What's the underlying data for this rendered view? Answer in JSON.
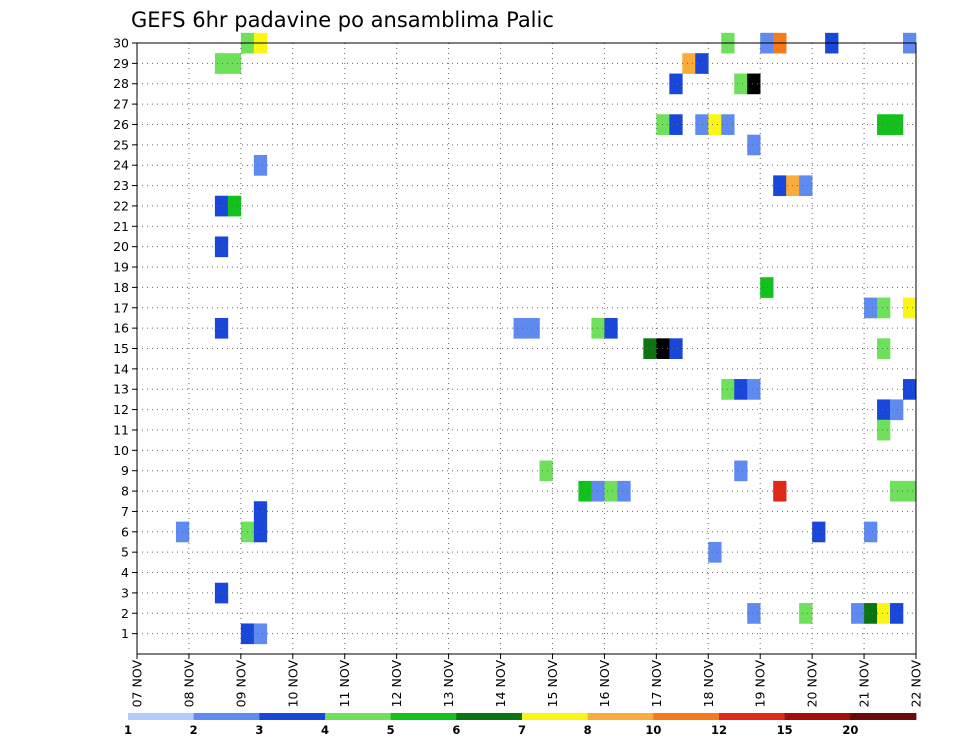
{
  "chart_data": {
    "type": "heatmap",
    "title": "GEFS 6hr padavine po ansamblima Palic",
    "xlabel": "",
    "ylabel": "",
    "x_ticks": [
      "07 NOV",
      "08 NOV",
      "09 NOV",
      "10 NOV",
      "11 NOV",
      "12 NOV",
      "13 NOV",
      "14 NOV",
      "15 NOV",
      "16 NOV",
      "17 NOV",
      "18 NOV",
      "19 NOV",
      "20 NOV",
      "21 NOV",
      "22 NOV"
    ],
    "y_ticks": [
      "1",
      "2",
      "3",
      "4",
      "5",
      "6",
      "7",
      "8",
      "9",
      "10",
      "11",
      "12",
      "13",
      "14",
      "15",
      "16",
      "17",
      "18",
      "19",
      "20",
      "21",
      "22",
      "23",
      "24",
      "25",
      "26",
      "27",
      "28",
      "29",
      "30"
    ],
    "xlim_days": [
      0,
      15
    ],
    "ylim_members": [
      0,
      30
    ],
    "grid": true,
    "step_hours": 6,
    "colorbar": {
      "levels": [
        "1",
        "2",
        "3",
        "4",
        "5",
        "6",
        "7",
        "8",
        "10",
        "12",
        "15",
        "20"
      ],
      "colors": [
        "#b5c9fa",
        "#5f8af0",
        "#1847da",
        "#6ee05b",
        "#13c11c",
        "#0b7512",
        "#faf513",
        "#faac3b",
        "#f57a1b",
        "#df2a1a",
        "#a50c0c",
        "#6b0a0a"
      ]
    },
    "cells": [
      {
        "member": 30,
        "time": "09 NOV 00",
        "bin": 3
      },
      {
        "member": 30,
        "time": "09 NOV 06",
        "bin": 6
      },
      {
        "member": 30,
        "time": "18 NOV 06",
        "bin": 3
      },
      {
        "member": 30,
        "time": "19 NOV 00",
        "bin": 1
      },
      {
        "member": 30,
        "time": "19 NOV 06",
        "bin": 8
      },
      {
        "member": 30,
        "time": "20 NOV 06",
        "bin": 2
      },
      {
        "member": 30,
        "time": "21 NOV 18",
        "bin": 1
      },
      {
        "member": 29,
        "time": "08 NOV 12",
        "bin": 3
      },
      {
        "member": 29,
        "time": "08 NOV 18",
        "bin": 3
      },
      {
        "member": 29,
        "time": "17 NOV 12",
        "bin": 7
      },
      {
        "member": 29,
        "time": "17 NOV 18",
        "bin": 2
      },
      {
        "member": 28,
        "time": "17 NOV 06",
        "bin": 2
      },
      {
        "member": 28,
        "time": "18 NOV 12",
        "bin": 3
      },
      {
        "member": 28,
        "time": "18 NOV 18",
        "bin": 12
      },
      {
        "member": 26,
        "time": "17 NOV 00",
        "bin": 3
      },
      {
        "member": 26,
        "time": "17 NOV 06",
        "bin": 2
      },
      {
        "member": 26,
        "time": "17 NOV 18",
        "bin": 1
      },
      {
        "member": 26,
        "time": "18 NOV 00",
        "bin": 6
      },
      {
        "member": 26,
        "time": "18 NOV 06",
        "bin": 1
      },
      {
        "member": 26,
        "time": "21 NOV 06",
        "bin": 4
      },
      {
        "member": 26,
        "time": "21 NOV 12",
        "bin": 4
      },
      {
        "member": 25,
        "time": "18 NOV 18",
        "bin": 1
      },
      {
        "member": 24,
        "time": "09 NOV 06",
        "bin": 1
      },
      {
        "member": 23,
        "time": "19 NOV 06",
        "bin": 2
      },
      {
        "member": 23,
        "time": "19 NOV 12",
        "bin": 7
      },
      {
        "member": 23,
        "time": "19 NOV 18",
        "bin": 1
      },
      {
        "member": 22,
        "time": "08 NOV 12",
        "bin": 2
      },
      {
        "member": 22,
        "time": "08 NOV 18",
        "bin": 4
      },
      {
        "member": 20,
        "time": "08 NOV 12",
        "bin": 2
      },
      {
        "member": 18,
        "time": "19 NOV 00",
        "bin": 4
      },
      {
        "member": 17,
        "time": "21 NOV 00",
        "bin": 1
      },
      {
        "member": 17,
        "time": "21 NOV 06",
        "bin": 3
      },
      {
        "member": 17,
        "time": "21 NOV 18",
        "bin": 6
      },
      {
        "member": 16,
        "time": "08 NOV 12",
        "bin": 2
      },
      {
        "member": 16,
        "time": "14 NOV 06",
        "bin": 1
      },
      {
        "member": 16,
        "time": "14 NOV 12",
        "bin": 1
      },
      {
        "member": 16,
        "time": "15 NOV 18",
        "bin": 3
      },
      {
        "member": 16,
        "time": "16 NOV 00",
        "bin": 2
      },
      {
        "member": 15,
        "time": "16 NOV 18",
        "bin": 5
      },
      {
        "member": 15,
        "time": "17 NOV 00",
        "bin": 12
      },
      {
        "member": 15,
        "time": "17 NOV 06",
        "bin": 2
      },
      {
        "member": 15,
        "time": "21 NOV 06",
        "bin": 3
      },
      {
        "member": 13,
        "time": "18 NOV 06",
        "bin": 3
      },
      {
        "member": 13,
        "time": "18 NOV 12",
        "bin": 2
      },
      {
        "member": 13,
        "time": "18 NOV 18",
        "bin": 1
      },
      {
        "member": 13,
        "time": "21 NOV 18",
        "bin": 2
      },
      {
        "member": 12,
        "time": "21 NOV 06",
        "bin": 2
      },
      {
        "member": 12,
        "time": "21 NOV 12",
        "bin": 1
      },
      {
        "member": 11,
        "time": "21 NOV 06",
        "bin": 3
      },
      {
        "member": 9,
        "time": "14 NOV 18",
        "bin": 3
      },
      {
        "member": 9,
        "time": "18 NOV 12",
        "bin": 1
      },
      {
        "member": 8,
        "time": "15 NOV 12",
        "bin": 4
      },
      {
        "member": 8,
        "time": "15 NOV 18",
        "bin": 1
      },
      {
        "member": 8,
        "time": "16 NOV 00",
        "bin": 3
      },
      {
        "member": 8,
        "time": "16 NOV 06",
        "bin": 1
      },
      {
        "member": 8,
        "time": "19 NOV 06",
        "bin": 9
      },
      {
        "member": 8,
        "time": "21 NOV 12",
        "bin": 3
      },
      {
        "member": 8,
        "time": "21 NOV 18",
        "bin": 3
      },
      {
        "member": 7,
        "time": "09 NOV 06",
        "bin": 2
      },
      {
        "member": 6,
        "time": "07 NOV 18",
        "bin": 1
      },
      {
        "member": 6,
        "time": "09 NOV 00",
        "bin": 3
      },
      {
        "member": 6,
        "time": "09 NOV 06",
        "bin": 2
      },
      {
        "member": 6,
        "time": "20 NOV 00",
        "bin": 2
      },
      {
        "member": 6,
        "time": "21 NOV 00",
        "bin": 1
      },
      {
        "member": 5,
        "time": "18 NOV 00",
        "bin": 1
      },
      {
        "member": 3,
        "time": "08 NOV 12",
        "bin": 2
      },
      {
        "member": 2,
        "time": "18 NOV 18",
        "bin": 1
      },
      {
        "member": 2,
        "time": "19 NOV 18",
        "bin": 3
      },
      {
        "member": 2,
        "time": "20 NOV 18",
        "bin": 1
      },
      {
        "member": 2,
        "time": "21 NOV 00",
        "bin": 5
      },
      {
        "member": 2,
        "time": "21 NOV 06",
        "bin": 6
      },
      {
        "member": 2,
        "time": "21 NOV 12",
        "bin": 2
      },
      {
        "member": 1,
        "time": "09 NOV 00",
        "bin": 2
      },
      {
        "member": 1,
        "time": "09 NOV 06",
        "bin": 1
      }
    ]
  }
}
